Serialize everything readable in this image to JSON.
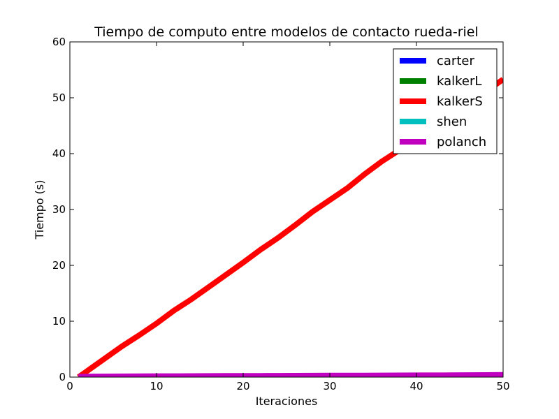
{
  "chart_data": {
    "type": "line",
    "title": "Tiempo de computo entre modelos de contacto rueda-riel",
    "xlabel": "Iteraciones",
    "ylabel": "Tiempo (s)",
    "xlim": [
      0,
      50
    ],
    "ylim": [
      0,
      60
    ],
    "xticks": [
      0,
      10,
      20,
      30,
      40,
      50
    ],
    "yticks": [
      0,
      10,
      20,
      30,
      40,
      50,
      60
    ],
    "grid": false,
    "legend_position": "top-right",
    "x": [
      1,
      2,
      4,
      6,
      8,
      10,
      12,
      14,
      16,
      18,
      20,
      22,
      24,
      26,
      28,
      30,
      32,
      34,
      36,
      38,
      40,
      42,
      44,
      46,
      48,
      50
    ],
    "series": [
      {
        "name": "carter",
        "color": "#0000ff",
        "values": [
          0.05,
          0.06,
          0.07,
          0.08,
          0.09,
          0.1,
          0.11,
          0.12,
          0.13,
          0.14,
          0.15,
          0.16,
          0.17,
          0.18,
          0.19,
          0.2,
          0.21,
          0.22,
          0.23,
          0.24,
          0.25,
          0.26,
          0.27,
          0.28,
          0.29,
          0.3
        ]
      },
      {
        "name": "kalkerL",
        "color": "#008000",
        "values": [
          0.05,
          0.06,
          0.07,
          0.08,
          0.09,
          0.1,
          0.11,
          0.12,
          0.13,
          0.14,
          0.15,
          0.16,
          0.17,
          0.18,
          0.19,
          0.2,
          0.21,
          0.22,
          0.23,
          0.24,
          0.25,
          0.26,
          0.27,
          0.28,
          0.29,
          0.3
        ]
      },
      {
        "name": "kalkerS",
        "color": "#ff0000",
        "values": [
          0.0,
          1.1,
          3.3,
          5.5,
          7.5,
          9.6,
          11.9,
          13.9,
          16.1,
          18.3,
          20.5,
          22.8,
          24.9,
          27.2,
          29.6,
          31.7,
          33.8,
          36.3,
          38.6,
          40.6,
          42.6,
          44.7,
          46.9,
          49.0,
          51.1,
          53.3
        ]
      },
      {
        "name": "shen",
        "color": "#00bfbf",
        "values": [
          0.05,
          0.06,
          0.07,
          0.08,
          0.09,
          0.1,
          0.11,
          0.12,
          0.13,
          0.14,
          0.15,
          0.16,
          0.17,
          0.18,
          0.19,
          0.2,
          0.21,
          0.22,
          0.23,
          0.24,
          0.25,
          0.26,
          0.27,
          0.28,
          0.29,
          0.3
        ]
      },
      {
        "name": "polanch",
        "color": "#bf00bf",
        "values": [
          0.08,
          0.1,
          0.12,
          0.14,
          0.16,
          0.17,
          0.18,
          0.19,
          0.2,
          0.21,
          0.22,
          0.23,
          0.24,
          0.25,
          0.26,
          0.27,
          0.28,
          0.29,
          0.3,
          0.31,
          0.32,
          0.33,
          0.34,
          0.36,
          0.38,
          0.4
        ]
      }
    ]
  }
}
